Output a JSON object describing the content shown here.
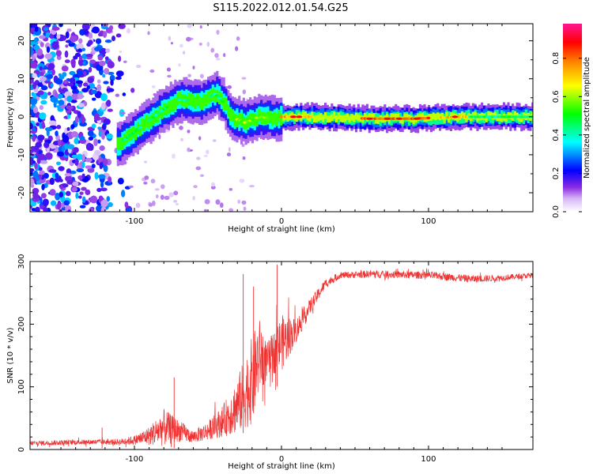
{
  "title": "S115.2022.012.01.54.G25",
  "chart_data": [
    {
      "type": "heatmap",
      "xlabel": "Height of straight line (km)",
      "ylabel": "Frequency (Hz)",
      "xlim": [
        -171,
        171
      ],
      "ylim": [
        -25,
        24.5
      ],
      "xticks": [
        -100,
        0,
        100
      ],
      "yticks": [
        -20,
        -10,
        0,
        10,
        20
      ],
      "colorbar": {
        "label": "Normalized spectral amplitude",
        "range": [
          0,
          0.98
        ],
        "ticks": [
          0.0,
          0.2,
          0.4,
          0.6,
          0.8
        ],
        "tick_labels": [
          "0.0",
          "0.2",
          "0.4",
          "0.6",
          "0.8"
        ],
        "colors": [
          "#ffffff",
          "#8a2be2",
          "#0000ff",
          "#00ffff",
          "#00ff00",
          "#ffff00",
          "#ff7f00",
          "#ff0000",
          "#ff1493"
        ]
      },
      "ridge": {
        "points": [
          [
            -110,
            -7
          ],
          [
            -100,
            -4
          ],
          [
            -90,
            -1
          ],
          [
            -80,
            2
          ],
          [
            -70,
            4.5
          ],
          [
            -55,
            4
          ],
          [
            -45,
            6
          ],
          [
            -40,
            4
          ],
          [
            -35,
            0
          ],
          [
            -25,
            -1.5
          ],
          [
            -15,
            0
          ],
          [
            -5,
            -0.5
          ],
          [
            0,
            0
          ],
          [
            20,
            0
          ],
          [
            60,
            -0.5
          ],
          [
            90,
            -0.5
          ],
          [
            120,
            0
          ],
          [
            171,
            0
          ]
        ],
        "peak_amplitude": 0.9
      },
      "noise_region": {
        "x": [
          -171,
          -115
        ],
        "y": [
          -25,
          24.5
        ],
        "amplitude": [
          0.05,
          0.35
        ]
      }
    },
    {
      "type": "line",
      "xlabel": "Height of straight line (km)",
      "ylabel": "SNR (10 * v/v)",
      "xlim": [
        -171,
        171
      ],
      "ylim": [
        0,
        300
      ],
      "xticks": [
        -100,
        0,
        100
      ],
      "yticks": [
        0,
        100,
        200,
        300
      ],
      "line_color": "#ee3333",
      "envelope": {
        "x": [
          -171,
          -130,
          -110,
          -100,
          -90,
          -80,
          -70,
          -60,
          -50,
          -40,
          -30,
          -20,
          -15,
          -10,
          -5,
          0,
          10,
          20,
          30,
          40,
          60,
          100,
          130,
          150,
          171
        ],
        "mean": [
          10,
          12,
          12,
          15,
          22,
          35,
          30,
          20,
          30,
          45,
          70,
          110,
          150,
          140,
          155,
          170,
          190,
          230,
          265,
          278,
          280,
          278,
          272,
          274,
          278
        ],
        "amplitude": [
          8,
          8,
          10,
          15,
          30,
          60,
          35,
          20,
          30,
          50,
          90,
          140,
          120,
          60,
          70,
          90,
          40,
          25,
          15,
          10,
          12,
          12,
          12,
          10,
          8
        ]
      },
      "peaks": [
        {
          "x": -26,
          "y": 280
        },
        {
          "x": -3,
          "y": 295
        },
        {
          "x": -19,
          "y": 260
        },
        {
          "x": -73,
          "y": 115
        },
        {
          "x": -122,
          "y": 35
        }
      ]
    }
  ]
}
